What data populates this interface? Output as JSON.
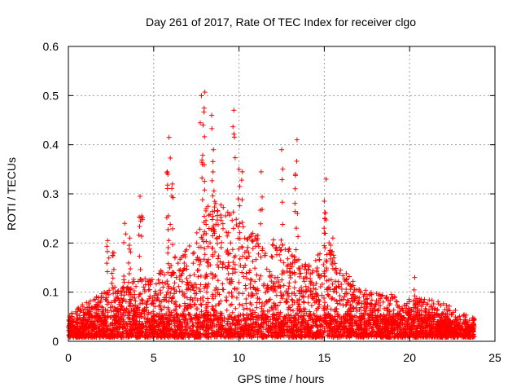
{
  "chart_data": {
    "type": "scatter",
    "title": "Day 261 of 2017, Rate Of TEC Index for receiver clgo",
    "xlabel": "GPS time / hours",
    "ylabel": "ROTI / TECUs",
    "xlim": [
      0,
      25
    ],
    "ylim": [
      0,
      0.6
    ],
    "x_ticks": [
      "0",
      "5",
      "10",
      "15",
      "20",
      "25"
    ],
    "y_ticks": [
      "0",
      "0.1",
      "0.2",
      "0.3",
      "0.4",
      "0.5",
      "0.6"
    ],
    "grid": true,
    "marker": "plus",
    "marker_color": "#ff0000",
    "x_extent": [
      0,
      23.8
    ],
    "envelope": {
      "x": [
        0,
        1,
        2,
        3,
        4,
        5,
        6,
        7,
        7.5,
        8,
        8.5,
        9,
        9.5,
        10,
        10.5,
        11,
        11.5,
        12,
        12.5,
        13,
        13.5,
        14,
        14.5,
        15,
        15.5,
        16,
        17,
        18,
        19,
        19.5,
        20,
        21,
        22,
        23,
        23.8
      ],
      "y_max_typical": [
        0.05,
        0.07,
        0.09,
        0.11,
        0.12,
        0.12,
        0.16,
        0.18,
        0.22,
        0.26,
        0.28,
        0.27,
        0.25,
        0.24,
        0.23,
        0.22,
        0.21,
        0.2,
        0.19,
        0.18,
        0.16,
        0.15,
        0.16,
        0.2,
        0.19,
        0.15,
        0.1,
        0.09,
        0.09,
        0.06,
        0.08,
        0.08,
        0.07,
        0.05,
        0.04
      ]
    },
    "spikes": [
      {
        "x": 2.3,
        "y": 0.205
      },
      {
        "x": 2.6,
        "y": 0.18
      },
      {
        "x": 3.3,
        "y": 0.24
      },
      {
        "x": 3.6,
        "y": 0.21
      },
      {
        "x": 4.2,
        "y": 0.295
      },
      {
        "x": 4.3,
        "y": 0.255
      },
      {
        "x": 5.9,
        "y": 0.415
      },
      {
        "x": 5.8,
        "y": 0.345
      },
      {
        "x": 6.1,
        "y": 0.32
      },
      {
        "x": 7.8,
        "y": 0.5
      },
      {
        "x": 8.0,
        "y": 0.507
      },
      {
        "x": 7.9,
        "y": 0.44
      },
      {
        "x": 8.4,
        "y": 0.46
      },
      {
        "x": 8.5,
        "y": 0.39
      },
      {
        "x": 9.7,
        "y": 0.47
      },
      {
        "x": 10.0,
        "y": 0.35
      },
      {
        "x": 10.2,
        "y": 0.345
      },
      {
        "x": 11.3,
        "y": 0.345
      },
      {
        "x": 12.5,
        "y": 0.39
      },
      {
        "x": 13.4,
        "y": 0.41
      },
      {
        "x": 13.3,
        "y": 0.34
      },
      {
        "x": 15.1,
        "y": 0.33
      },
      {
        "x": 15.0,
        "y": 0.285
      },
      {
        "x": 15.5,
        "y": 0.21
      },
      {
        "x": 20.3,
        "y": 0.13
      }
    ]
  }
}
